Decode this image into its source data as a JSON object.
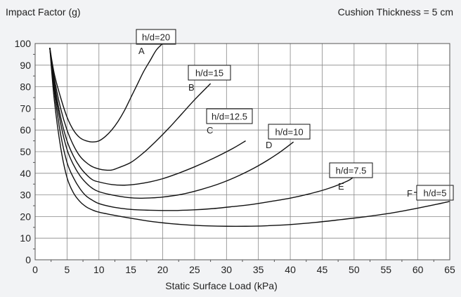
{
  "chart_data": {
    "type": "line",
    "title": "",
    "ylabel": "Impact Factor (g)",
    "note": "Cushion Thickness = 5 cm",
    "xlabel": "Static Surface Load (kPa)",
    "xlim": [
      0,
      65
    ],
    "ylim": [
      0,
      100
    ],
    "x_ticks": [
      "0",
      "5",
      "10",
      "15",
      "20",
      "25",
      "30",
      "35",
      "40",
      "45",
      "50",
      "55",
      "60",
      "65"
    ],
    "y_ticks": [
      "0",
      "10",
      "20",
      "30",
      "40",
      "50",
      "60",
      "70",
      "80",
      "90",
      "100"
    ],
    "grid": true,
    "series": [
      {
        "name": "h/d=20",
        "letter": "A",
        "points": [
          [
            2.3,
            98
          ],
          [
            3,
            86
          ],
          [
            4,
            75
          ],
          [
            5,
            66
          ],
          [
            6,
            60
          ],
          [
            7,
            56.5
          ],
          [
            8,
            55
          ],
          [
            9,
            54.5
          ],
          [
            10,
            55
          ],
          [
            11,
            57
          ],
          [
            12,
            60
          ],
          [
            13,
            64
          ],
          [
            14,
            69
          ],
          [
            15,
            75
          ],
          [
            16,
            81
          ],
          [
            17,
            87
          ],
          [
            18,
            92
          ],
          [
            19,
            97
          ],
          [
            20,
            100
          ]
        ]
      },
      {
        "name": "h/d=15",
        "letter": "B",
        "points": [
          [
            2.3,
            98
          ],
          [
            3,
            84
          ],
          [
            4,
            70
          ],
          [
            5,
            60
          ],
          [
            6,
            53
          ],
          [
            7,
            48
          ],
          [
            8,
            45
          ],
          [
            9,
            43
          ],
          [
            10,
            42
          ],
          [
            11,
            41.5
          ],
          [
            12,
            41.5
          ],
          [
            13,
            42.5
          ],
          [
            15,
            45
          ],
          [
            17,
            49.5
          ],
          [
            19,
            55
          ],
          [
            21,
            61
          ],
          [
            23,
            67.5
          ],
          [
            25,
            74
          ],
          [
            27,
            80
          ],
          [
            27.5,
            81.5
          ]
        ]
      },
      {
        "name": "h/d=12.5",
        "letter": "C",
        "points": [
          [
            2.3,
            98
          ],
          [
            3,
            82
          ],
          [
            4,
            66
          ],
          [
            5,
            55
          ],
          [
            6,
            48
          ],
          [
            7,
            43
          ],
          [
            8,
            39.5
          ],
          [
            9,
            37
          ],
          [
            10,
            36
          ],
          [
            12,
            34.8
          ],
          [
            14,
            34.5
          ],
          [
            16,
            35
          ],
          [
            18,
            36
          ],
          [
            20,
            37.5
          ],
          [
            22,
            39.5
          ],
          [
            25,
            43
          ],
          [
            28,
            47
          ],
          [
            31,
            51.5
          ],
          [
            33,
            55
          ]
        ]
      },
      {
        "name": "h/d=10",
        "letter": "D",
        "points": [
          [
            2.3,
            98
          ],
          [
            3,
            80
          ],
          [
            4,
            63
          ],
          [
            5,
            51
          ],
          [
            6,
            44
          ],
          [
            7,
            39
          ],
          [
            8,
            35.5
          ],
          [
            9,
            33
          ],
          [
            10,
            31.5
          ],
          [
            12,
            30
          ],
          [
            14,
            29
          ],
          [
            16,
            28.5
          ],
          [
            18,
            28.6
          ],
          [
            20,
            29
          ],
          [
            23,
            30.3
          ],
          [
            26,
            32.5
          ],
          [
            29,
            35.3
          ],
          [
            32,
            39
          ],
          [
            35,
            43.5
          ],
          [
            38,
            49
          ],
          [
            40.5,
            54.5
          ]
        ]
      },
      {
        "name": "h/d=7.5",
        "letter": "E",
        "points": [
          [
            2.3,
            98
          ],
          [
            3,
            78
          ],
          [
            4,
            58
          ],
          [
            5,
            45
          ],
          [
            6,
            38
          ],
          [
            7,
            33
          ],
          [
            8,
            29.5
          ],
          [
            9,
            27.5
          ],
          [
            10,
            26
          ],
          [
            12,
            24.5
          ],
          [
            14,
            23.6
          ],
          [
            16,
            23.1
          ],
          [
            18,
            22.9
          ],
          [
            20,
            22.8
          ],
          [
            22,
            22.8
          ],
          [
            25,
            23.1
          ],
          [
            28,
            23.7
          ],
          [
            31,
            24.6
          ],
          [
            34,
            25.6
          ],
          [
            37,
            27
          ],
          [
            40,
            28.5
          ],
          [
            43,
            30.5
          ],
          [
            46,
            33
          ],
          [
            49,
            36.5
          ],
          [
            50,
            38.5
          ]
        ]
      },
      {
        "name": "h/d=5",
        "letter": "F",
        "points": [
          [
            2.3,
            98
          ],
          [
            3,
            74
          ],
          [
            4,
            52
          ],
          [
            5,
            38
          ],
          [
            6,
            31
          ],
          [
            7,
            27
          ],
          [
            8,
            24.5
          ],
          [
            9,
            23
          ],
          [
            10,
            22
          ],
          [
            12,
            20.8
          ],
          [
            15,
            19.2
          ],
          [
            18,
            17.8
          ],
          [
            21,
            16.8
          ],
          [
            24,
            16.1
          ],
          [
            27,
            15.7
          ],
          [
            30,
            15.5
          ],
          [
            33,
            15.5
          ],
          [
            36,
            15.7
          ],
          [
            40,
            16.3
          ],
          [
            44,
            17.3
          ],
          [
            48,
            18.6
          ],
          [
            52,
            20
          ],
          [
            56,
            21.7
          ],
          [
            60,
            23.9
          ],
          [
            63,
            25.7
          ],
          [
            65,
            27
          ]
        ]
      }
    ],
    "label_tags": [
      {
        "text": "h/d=20"
      },
      {
        "text": "h/d=15"
      },
      {
        "text": "h/d=12.5"
      },
      {
        "text": "h/d=10"
      },
      {
        "text": "h/d=7.5"
      },
      {
        "text": "h/d=5"
      }
    ],
    "colors": {
      "background": "#f2f3f5",
      "plot_bg": "#ffffff",
      "grid": "#888888",
      "line": "#111111",
      "tag_fill": "#ffffff"
    }
  }
}
